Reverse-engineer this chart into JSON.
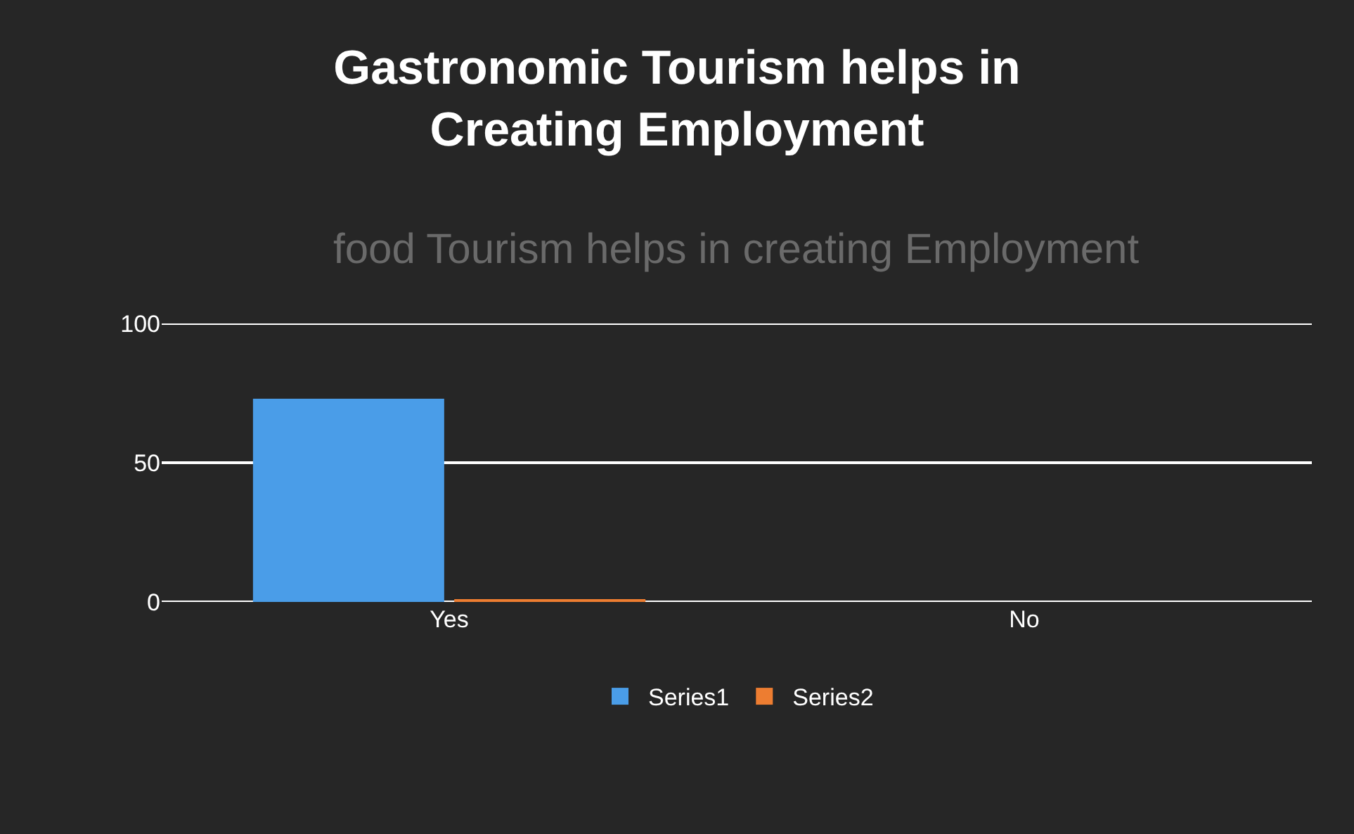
{
  "chart_data": {
    "type": "bar",
    "title": "Gastronomic Tourism helps in\nCreating Employment",
    "annotations": [
      "food Tourism helps in creating Employment"
    ],
    "categories": [
      "Yes",
      "No"
    ],
    "series": [
      {
        "name": "Series1",
        "color": "#4a9de8",
        "values": [
          73,
          0
        ]
      },
      {
        "name": "Series2",
        "color": "#ed7d31",
        "values": [
          1,
          0
        ]
      }
    ],
    "ylim": [
      0,
      100
    ],
    "yticks": [
      0,
      50,
      100
    ],
    "grid": "y",
    "legend": "bottom"
  }
}
